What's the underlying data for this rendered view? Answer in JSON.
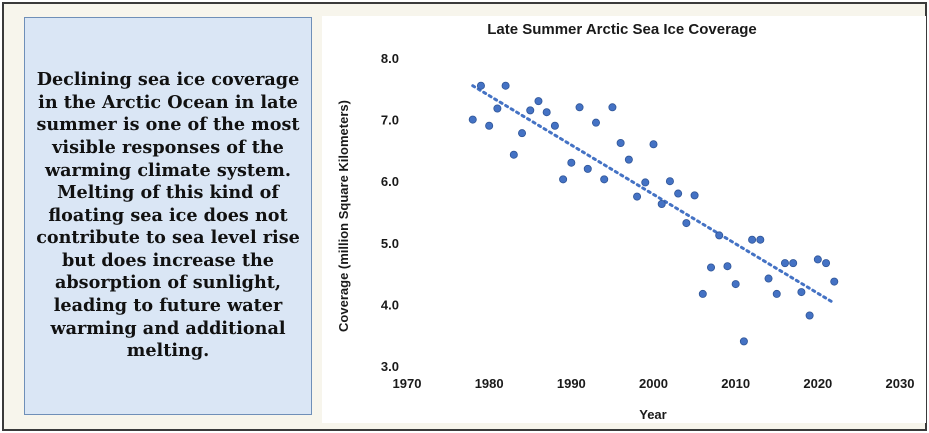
{
  "sidebar": {
    "text": "Declining sea ice coverage in the Arctic Ocean in late summer is one of the most visible responses of the warming climate system. Melting of this kind of floating sea ice does not contribute to sea level rise but does increase the absorption of sunlight, leading to future water warming and additional melting."
  },
  "chart_data": {
    "type": "scatter",
    "title": "Late Summer Arctic Sea Ice Coverage",
    "xlabel": "Year",
    "ylabel": "Coverage (million Square Kilometers)",
    "xlim": [
      1970,
      2030
    ],
    "ylim": [
      3.0,
      8.0
    ],
    "xticks": [
      1970,
      1980,
      1990,
      2000,
      2010,
      2020,
      2030
    ],
    "yticks": [
      "3.0",
      "4.0",
      "5.0",
      "6.0",
      "7.0",
      "8.0"
    ],
    "grid": false,
    "legend": "none",
    "marker_color": "#4472c4",
    "trendline": {
      "style": "dotted",
      "color": "#4472c4",
      "start": [
        1978,
        7.55
      ],
      "end": [
        2022,
        4.02
      ]
    },
    "points": [
      [
        1978,
        7.0
      ],
      [
        1979,
        7.55
      ],
      [
        1980,
        6.9
      ],
      [
        1981,
        7.18
      ],
      [
        1982,
        7.55
      ],
      [
        1983,
        6.43
      ],
      [
        1984,
        6.78
      ],
      [
        1985,
        7.15
      ],
      [
        1986,
        7.3
      ],
      [
        1987,
        7.12
      ],
      [
        1988,
        6.9
      ],
      [
        1989,
        6.03
      ],
      [
        1990,
        6.3
      ],
      [
        1991,
        7.2
      ],
      [
        1992,
        6.2
      ],
      [
        1993,
        6.95
      ],
      [
        1994,
        6.03
      ],
      [
        1995,
        7.2
      ],
      [
        1996,
        6.62
      ],
      [
        1997,
        6.35
      ],
      [
        1998,
        5.75
      ],
      [
        1999,
        5.98
      ],
      [
        2000,
        6.6
      ],
      [
        2001,
        5.63
      ],
      [
        2002,
        6.0
      ],
      [
        2003,
        5.8
      ],
      [
        2004,
        5.32
      ],
      [
        2005,
        5.77
      ],
      [
        2006,
        4.17
      ],
      [
        2007,
        4.6
      ],
      [
        2008,
        5.12
      ],
      [
        2009,
        4.62
      ],
      [
        2010,
        4.33
      ],
      [
        2011,
        3.4
      ],
      [
        2012,
        5.05
      ],
      [
        2013,
        5.05
      ],
      [
        2014,
        4.42
      ],
      [
        2015,
        4.17
      ],
      [
        2016,
        4.67
      ],
      [
        2017,
        4.67
      ],
      [
        2018,
        4.2
      ],
      [
        2019,
        3.82
      ],
      [
        2020,
        4.73
      ],
      [
        2021,
        4.67
      ],
      [
        2022,
        4.37
      ]
    ]
  }
}
